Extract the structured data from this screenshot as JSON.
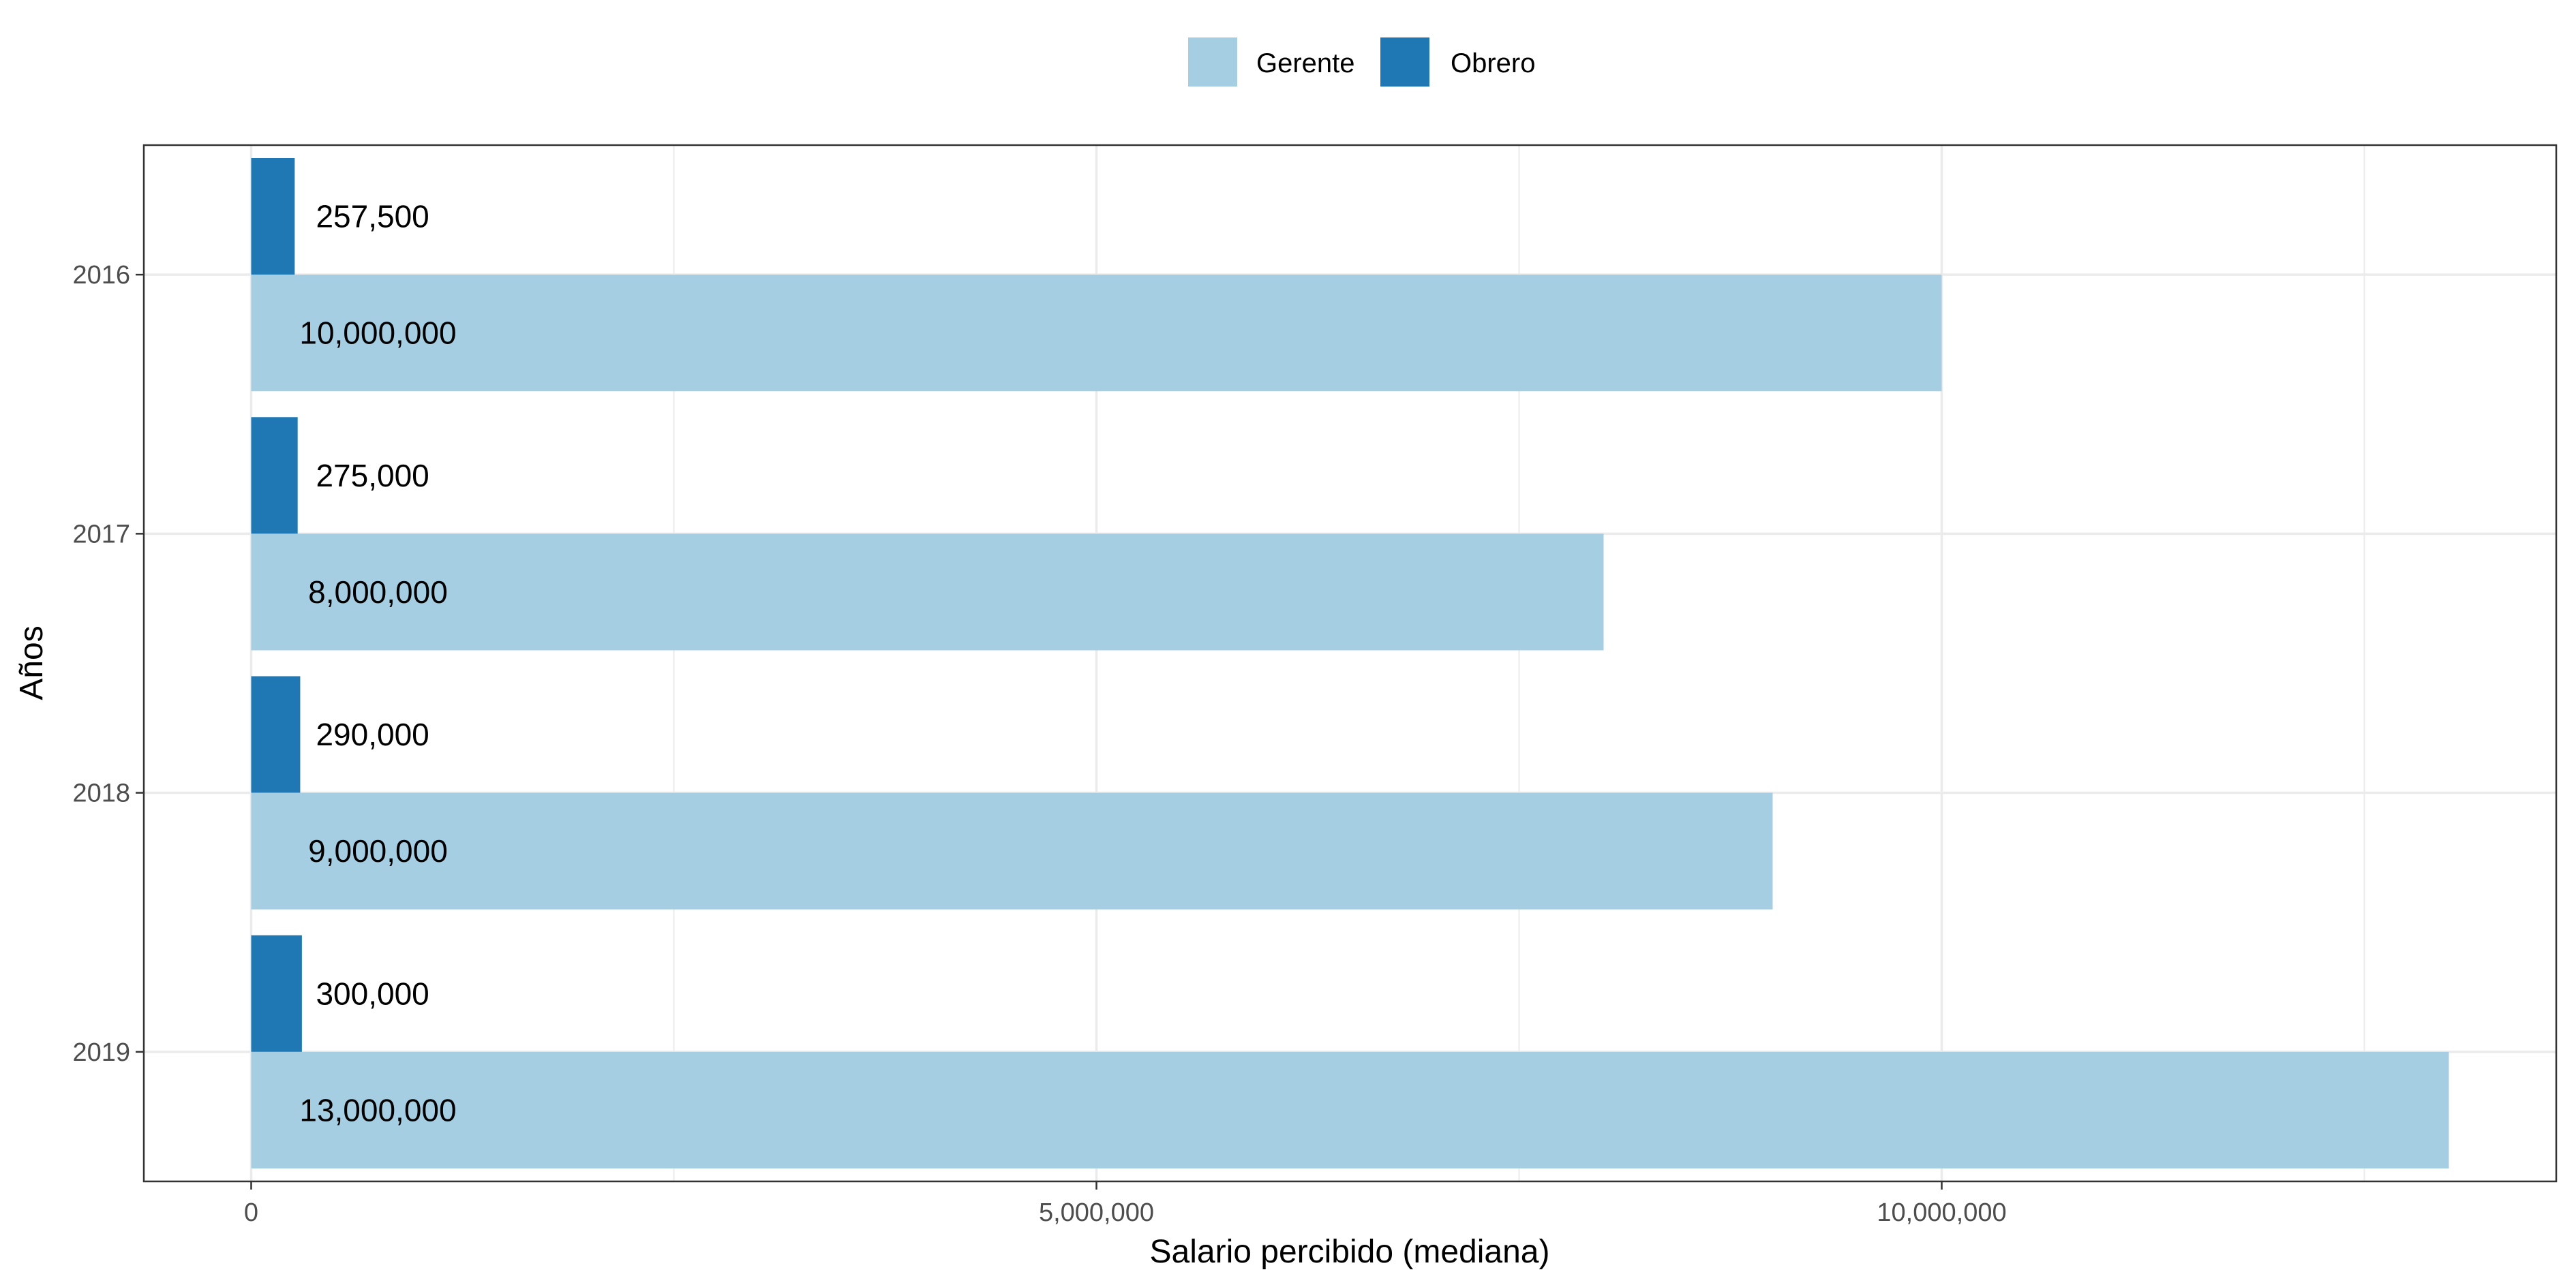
{
  "chart_data": {
    "type": "bar",
    "orientation": "horizontal",
    "categories": [
      "2016",
      "2017",
      "2018",
      "2019"
    ],
    "series": [
      {
        "name": "Gerente",
        "color": "#a6cee3",
        "values": [
          10000000,
          8000000,
          9000000,
          13000000
        ],
        "labels": [
          "10,000,000",
          "8,000,000",
          "9,000,000",
          "13,000,000"
        ]
      },
      {
        "name": "Obrero",
        "color": "#1f78b4",
        "values": [
          257500,
          275000,
          290000,
          300000
        ],
        "labels": [
          "257,500",
          "275,000",
          "290,000",
          "300,000"
        ]
      }
    ],
    "xlabel": "Salario percibido (mediana)",
    "ylabel": "Años",
    "xticks": [
      {
        "value": 0,
        "label": "0"
      },
      {
        "value": 5000000,
        "label": "5,000,000"
      },
      {
        "value": 10000000,
        "label": "10,000,000"
      }
    ],
    "xlim": [
      -635000,
      13635000
    ],
    "grid": true,
    "legend_position": "top"
  }
}
